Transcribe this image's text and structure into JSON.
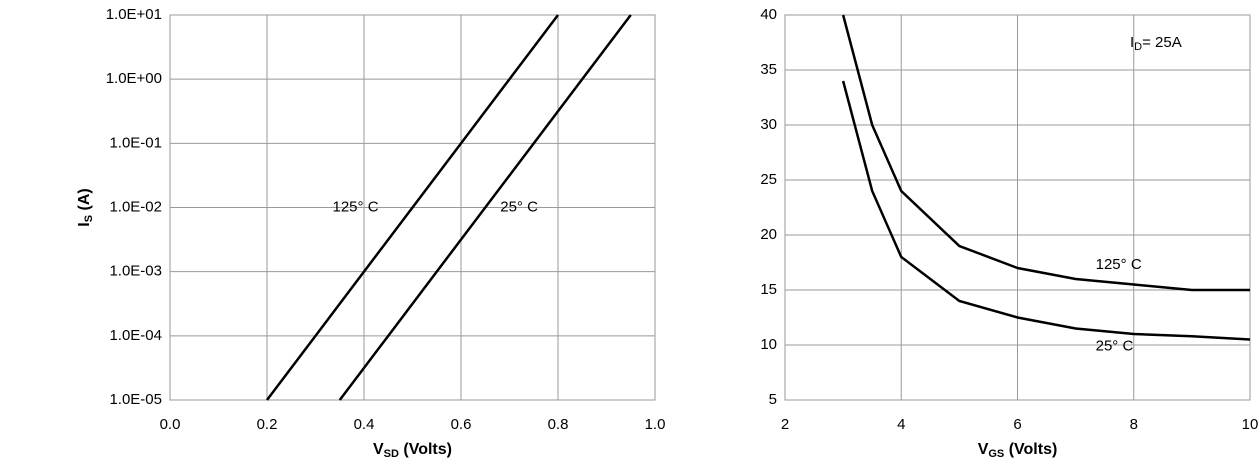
{
  "chart_data": [
    {
      "type": "line",
      "log_y": true,
      "grid": true,
      "xlabel": [
        "V",
        "SD",
        " (Volts)"
      ],
      "ylabel": [
        "I",
        "S",
        " (A)"
      ],
      "xlim": [
        0,
        1.0
      ],
      "xticks": [
        {
          "value": 0,
          "label": "0.0"
        },
        0.2,
        0.4,
        0.6,
        0.8,
        {
          "value": 1.0,
          "label": "1.0"
        }
      ],
      "ylim": [
        1e-05,
        10
      ],
      "yticks": [
        {
          "value": 1e-05,
          "label": "1.0E-05"
        },
        {
          "value": 0.0001,
          "label": "1.0E-04"
        },
        {
          "value": 0.001,
          "label": "1.0E-03"
        },
        {
          "value": 0.01,
          "label": "1.0E-02"
        },
        {
          "value": 0.1,
          "label": "1.0E-01"
        },
        {
          "value": 1,
          "label": "1.0E+00"
        },
        {
          "value": 10,
          "label": "1.0E+01"
        }
      ],
      "series": [
        {
          "name": "125° C",
          "color": "#000000",
          "x": [
            0.2,
            0.3,
            0.4,
            0.5,
            0.6,
            0.7,
            0.8
          ],
          "values": [
            1e-05,
            0.0001,
            0.001,
            0.01,
            0.1,
            1,
            10
          ]
        },
        {
          "name": "25° C",
          "color": "#000000",
          "x": [
            0.35,
            0.45,
            0.55,
            0.65,
            0.75,
            0.85,
            0.95
          ],
          "values": [
            1e-05,
            0.0001,
            0.001,
            0.01,
            0.1,
            1,
            10
          ]
        }
      ]
    },
    {
      "type": "line",
      "log_y": false,
      "grid": true,
      "xlabel": [
        "V",
        "GS",
        " (Volts)"
      ],
      "annotation": [
        "I",
        "D",
        "= 25A"
      ],
      "xlim": [
        2,
        10
      ],
      "xticks": [
        2,
        4,
        6,
        8,
        10
      ],
      "ylim": [
        5,
        40
      ],
      "yticks": [
        5,
        10,
        15,
        20,
        25,
        30,
        35,
        40
      ],
      "series": [
        {
          "name": "125° C",
          "color": "#000000",
          "x": [
            3,
            3.5,
            4,
            5,
            6,
            7,
            8,
            9,
            10
          ],
          "values": [
            40,
            30,
            24,
            19,
            17,
            16,
            15.5,
            15,
            15
          ]
        },
        {
          "name": "25° C",
          "color": "#000000",
          "x": [
            3,
            3.5,
            4,
            5,
            6,
            7,
            8,
            9,
            10
          ],
          "values": [
            34,
            24,
            18,
            14,
            12.5,
            11.5,
            11,
            10.8,
            10.5
          ]
        }
      ]
    }
  ]
}
